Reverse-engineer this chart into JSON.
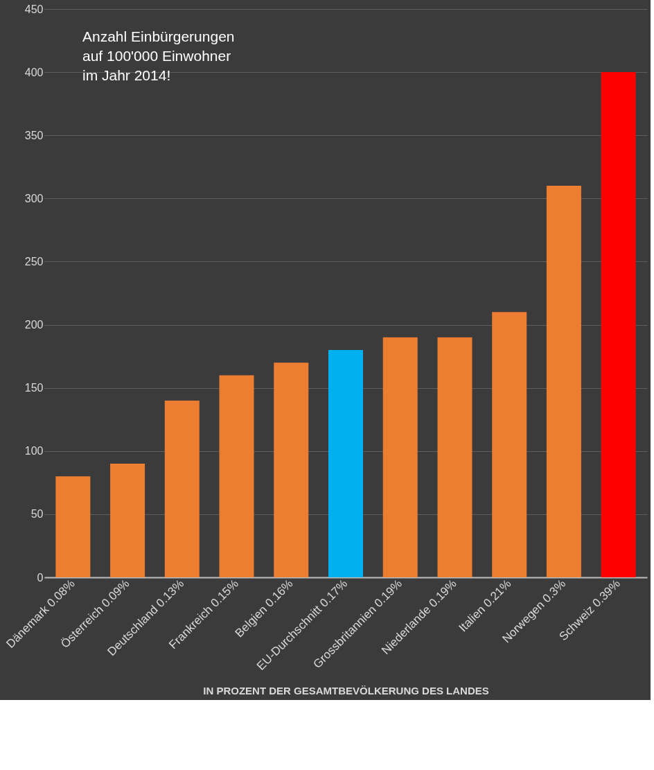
{
  "chart_data": {
    "type": "bar",
    "categories": [
      "Dänemark 0.08%",
      "Österreich 0.09%",
      "Deutschland 0.13%",
      "Frankreich 0.15%",
      "Belgien 0.16%",
      "EU-Durchschnitt 0.17%",
      "Grossbritannien 0.19%",
      "Niederlande 0.19%",
      "Italien 0.21%",
      "Norwegen 0.3%",
      "Schweiz 0.39%"
    ],
    "values": [
      80,
      90,
      140,
      160,
      170,
      180,
      190,
      190,
      210,
      310,
      400
    ],
    "colors": [
      "#ed7d31",
      "#ed7d31",
      "#ed7d31",
      "#ed7d31",
      "#ed7d31",
      "#00b0f0",
      "#ed7d31",
      "#ed7d31",
      "#ed7d31",
      "#ed7d31",
      "#ff0000"
    ],
    "xlabel": "IN PROZENT DER GESAMTBEVÖLKERUNG DES LANDES",
    "annotations": [
      "Anzahl Einbürgerungen\nauf 100'000 Einwohner\nim Jahr 2014!"
    ],
    "ylim": [
      0,
      450
    ],
    "yticks": [
      0,
      50,
      100,
      150,
      200,
      250,
      300,
      350,
      400,
      450
    ],
    "grid": "y"
  }
}
